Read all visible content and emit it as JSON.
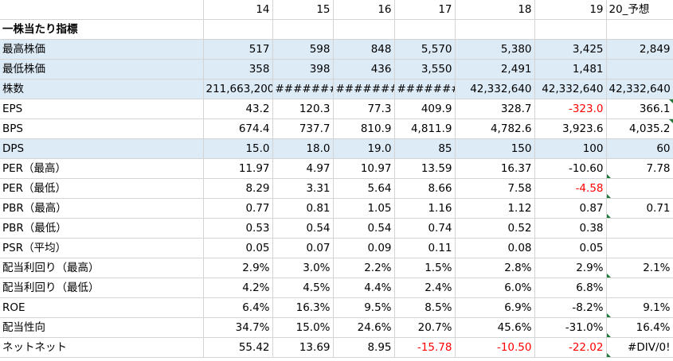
{
  "headers": [
    "",
    "14",
    "15",
    "16",
    "17",
    "18",
    "19",
    "20_予想"
  ],
  "rows": [
    {
      "label": "一株当たり指標",
      "bold": true,
      "blue": false,
      "cells": [
        "",
        "",
        "",
        "",
        "",
        "",
        ""
      ]
    },
    {
      "label": "最高株価",
      "blue": true,
      "cells": [
        "517",
        "598",
        "848",
        "5,570",
        "5,380",
        "3,425",
        "2,849"
      ]
    },
    {
      "label": "最低株価",
      "blue": true,
      "cells": [
        "358",
        "398",
        "436",
        "3,550",
        "2,491",
        "1,481",
        ""
      ]
    },
    {
      "label": "株数",
      "blue": true,
      "cells": [
        "211,663,200",
        "#######",
        "########",
        "#######",
        "42,332,640",
        "42,332,640",
        "42,332,640"
      ]
    },
    {
      "label": "EPS",
      "blue": false,
      "cells": [
        "43.2",
        "120.3",
        "77.3",
        "409.9",
        "328.7",
        "-323.0",
        "366.1"
      ],
      "neg": [
        5
      ],
      "corner": [
        6
      ]
    },
    {
      "label": "BPS",
      "blue": false,
      "cells": [
        "674.4",
        "737.7",
        "810.9",
        "4,811.9",
        "4,782.6",
        "3,923.6",
        "4,035.2"
      ],
      "corner": [
        6
      ]
    },
    {
      "label": "DPS",
      "blue": true,
      "cells": [
        "15.0",
        "18.0",
        "19.0",
        "85",
        "150",
        "100",
        "60"
      ]
    },
    {
      "label": "PER（最高）",
      "blue": false,
      "cells": [
        "11.97",
        "4.97",
        "10.97",
        "13.59",
        "16.37",
        "-10.60",
        "7.78"
      ],
      "cornerbl": [
        6
      ]
    },
    {
      "label": "PER（最低）",
      "blue": false,
      "cells": [
        "8.29",
        "3.31",
        "5.64",
        "8.66",
        "7.58",
        "-4.58",
        ""
      ],
      "neg": [
        5
      ],
      "cornerbl": [
        6
      ]
    },
    {
      "label": "PBR（最高）",
      "blue": false,
      "cells": [
        "0.77",
        "0.81",
        "1.05",
        "1.16",
        "1.12",
        "0.87",
        "0.71"
      ],
      "cornerbl": [
        6
      ]
    },
    {
      "label": "PBR（最低）",
      "blue": false,
      "cells": [
        "0.53",
        "0.54",
        "0.54",
        "0.74",
        "0.52",
        "0.38",
        ""
      ]
    },
    {
      "label": "PSR（平均）",
      "blue": false,
      "cells": [
        "0.05",
        "0.07",
        "0.09",
        "0.11",
        "0.08",
        "0.05",
        ""
      ]
    },
    {
      "label": "配当利回り（最高）",
      "blue": false,
      "cells": [
        "2.9%",
        "3.0%",
        "2.2%",
        "1.5%",
        "2.8%",
        "2.9%",
        "2.1%"
      ],
      "cornerbl": [
        6
      ]
    },
    {
      "label": "配当利回り（最低）",
      "blue": false,
      "cells": [
        "4.2%",
        "4.5%",
        "4.4%",
        "2.4%",
        "6.0%",
        "6.8%",
        ""
      ]
    },
    {
      "label": "ROE",
      "blue": false,
      "cells": [
        "6.4%",
        "16.3%",
        "9.5%",
        "8.5%",
        "6.9%",
        "-8.2%",
        "9.1%"
      ],
      "cornerbl": [
        6
      ]
    },
    {
      "label": "配当性向",
      "blue": false,
      "cells": [
        "34.7%",
        "15.0%",
        "24.6%",
        "20.7%",
        "45.6%",
        "-31.0%",
        "16.4%"
      ],
      "cornerbl": [
        6
      ]
    },
    {
      "label": "ネットネット",
      "blue": false,
      "cells": [
        "55.42",
        "13.69",
        "8.95",
        "-15.78",
        "-10.50",
        "-22.02",
        "#DIV/0!"
      ],
      "neg": [
        3,
        4,
        5
      ],
      "cornerbl": [
        6
      ]
    }
  ]
}
